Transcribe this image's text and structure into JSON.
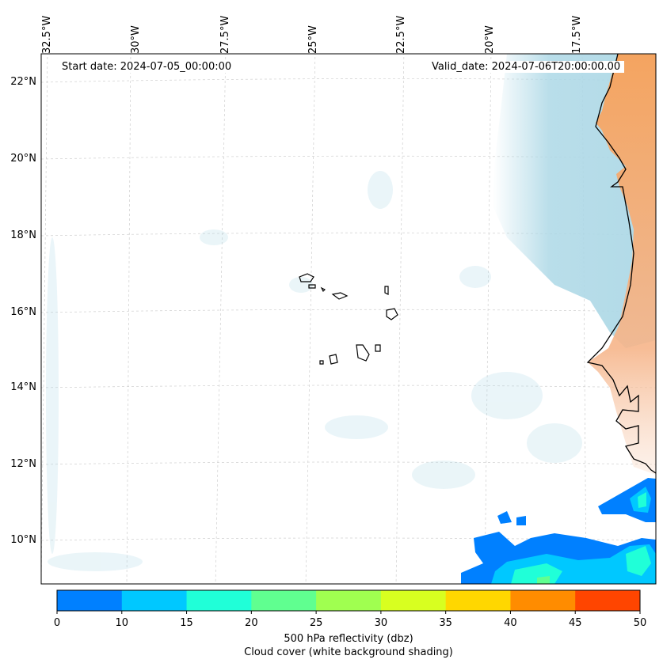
{
  "map": {
    "start_date": "Start date: 2024-07-05_00:00:00",
    "valid_date": "Valid_date: 2024-07-06T20:00:00.00",
    "lon_labels": [
      "32.5°W",
      "30°W",
      "27.5°W",
      "25°W",
      "22.5°W",
      "20°W",
      "17.5°W"
    ],
    "lat_labels": [
      "22°N",
      "20°N",
      "18°N",
      "16°N",
      "14°N",
      "12°N",
      "10°N"
    ],
    "colors": {
      "cloud_cover": "#add8e6",
      "land_shading": "#f4a460",
      "coastline": "#000000",
      "gridline": "#c8c8c8"
    }
  },
  "colorbar": {
    "ticks": [
      "0",
      "10",
      "15",
      "20",
      "25",
      "30",
      "35",
      "40",
      "45",
      "50"
    ],
    "colors": [
      "#0080ff",
      "#00c8ff",
      "#20ffd8",
      "#60ff90",
      "#a0ff50",
      "#d8ff20",
      "#ffd700",
      "#ff8c00",
      "#ff4500"
    ],
    "label_line1": "500 hPa reflectivity (dbz)",
    "label_line2": "Cloud cover (white background shading)"
  }
}
